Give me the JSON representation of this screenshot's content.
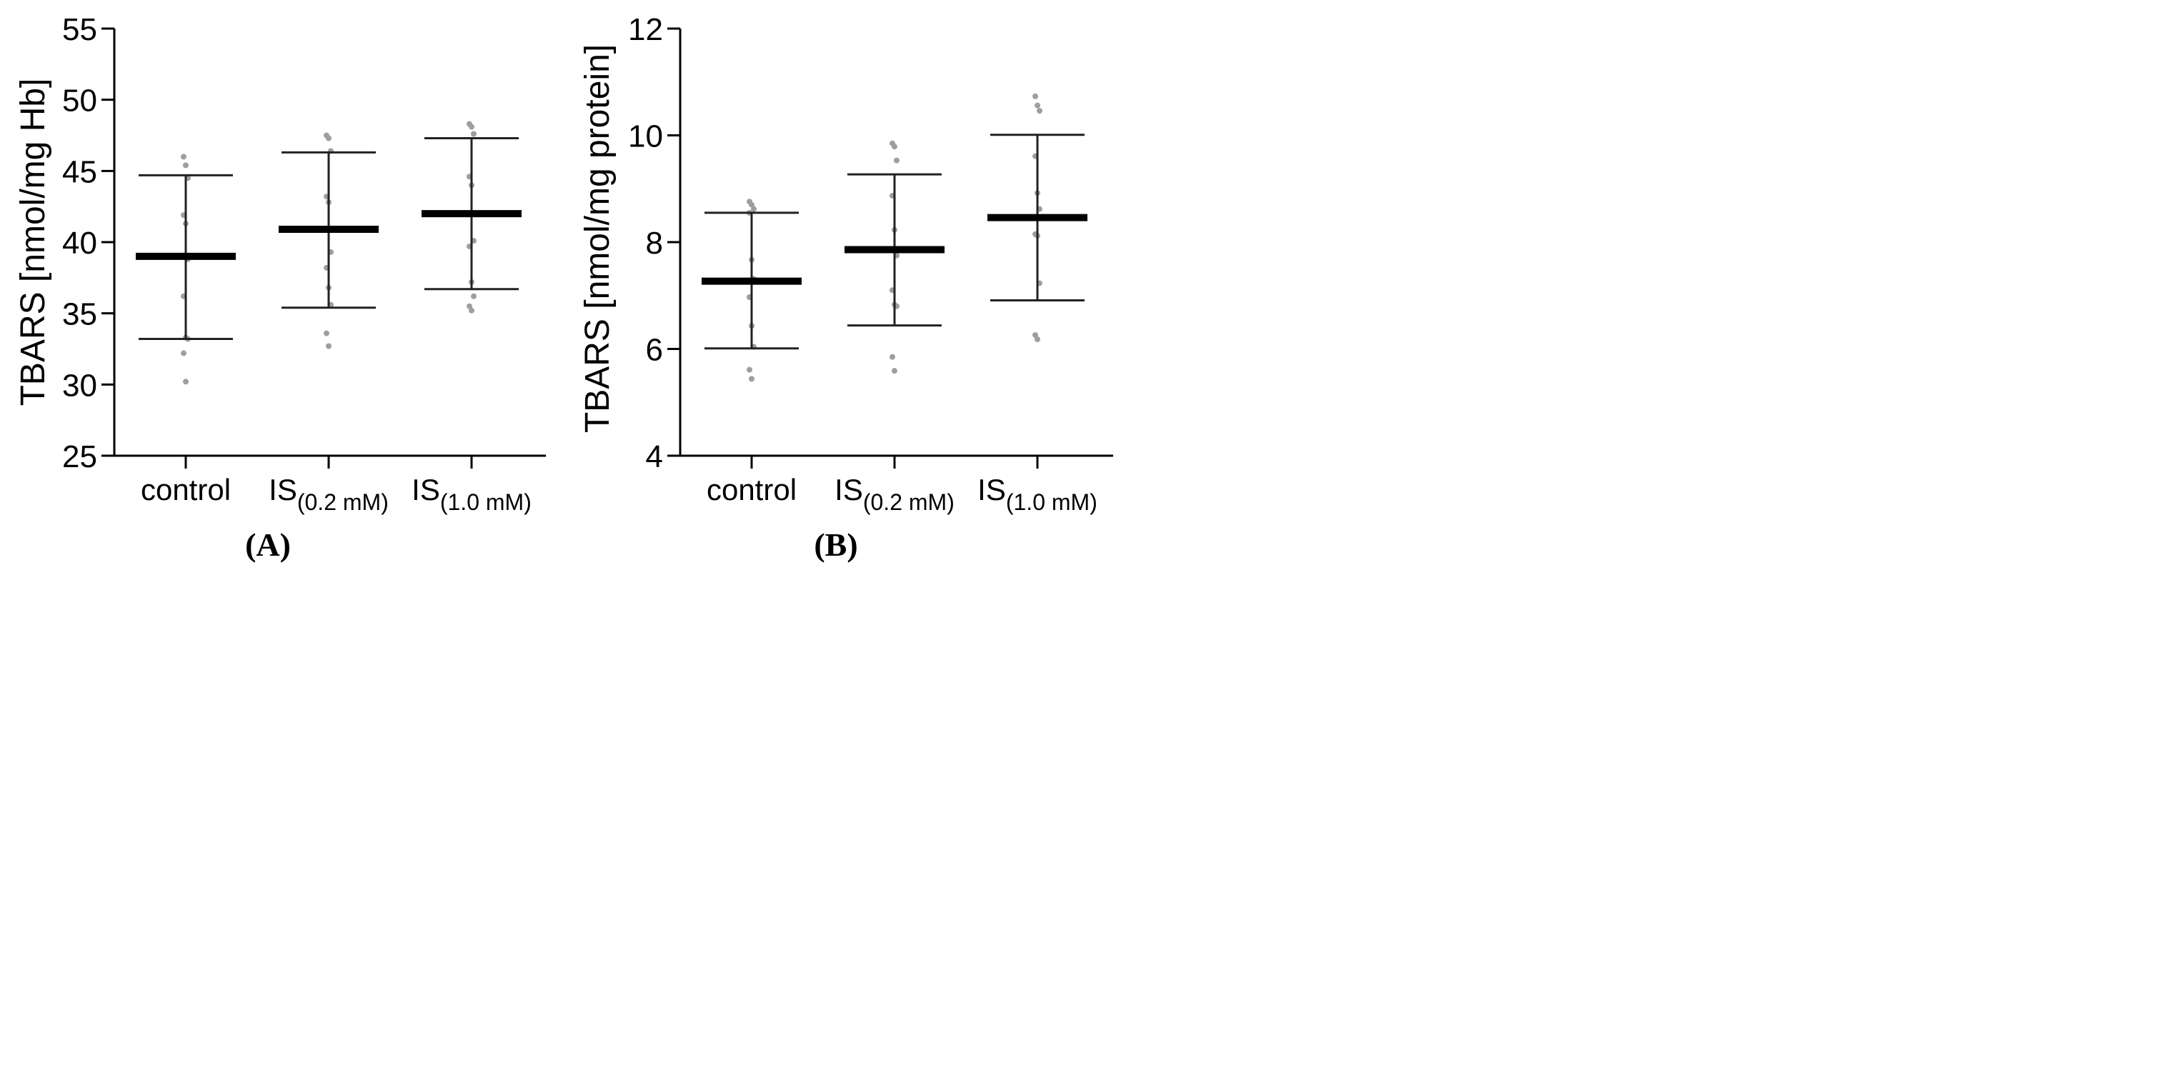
{
  "chart_data": [
    {
      "type": "scatter",
      "panel_label": "A",
      "panel_label_text": "(A)",
      "ylabel": "TBARS [nmol/mg Hb]",
      "ylim": [
        25,
        55
      ],
      "yticks": [
        25,
        30,
        35,
        40,
        45,
        50,
        55
      ],
      "ytick_labels": [
        "25",
        "30",
        "35",
        "40",
        "45",
        "50",
        "55"
      ],
      "categories": [
        {
          "main": "control",
          "sub": ""
        },
        {
          "main": "IS",
          "sub": "(0.2 mM)"
        },
        {
          "main": "IS",
          "sub": "(1.0 mM)"
        }
      ],
      "groups": [
        {
          "mean": 39.0,
          "sd_low": 33.2,
          "sd_high": 44.7,
          "points": [
            46.0,
            45.4,
            44.5,
            41.9,
            41.3,
            38.8,
            36.2,
            33.3,
            33.2,
            32.2,
            30.2
          ]
        },
        {
          "mean": 40.9,
          "sd_low": 35.4,
          "sd_high": 46.3,
          "points": [
            47.5,
            47.3,
            46.4,
            43.2,
            42.8,
            39.3,
            38.2,
            36.8,
            35.6,
            33.6,
            32.7
          ]
        },
        {
          "mean": 42.0,
          "sd_low": 36.7,
          "sd_high": 47.3,
          "points": [
            48.3,
            48.1,
            47.6,
            44.6,
            44.0,
            40.1,
            39.7,
            37.2,
            36.2,
            35.5,
            35.2
          ]
        }
      ]
    },
    {
      "type": "scatter",
      "panel_label": "B",
      "panel_label_text": "(B)",
      "ylabel": "TBARS [nmol/mg protein]",
      "ylim": [
        4,
        12
      ],
      "yticks": [
        4,
        6,
        8,
        10,
        12
      ],
      "ytick_labels": [
        "4",
        "6",
        "8",
        "10",
        "12"
      ],
      "categories": [
        {
          "main": "control",
          "sub": ""
        },
        {
          "main": "IS",
          "sub": "(0.2 mM)"
        },
        {
          "main": "IS",
          "sub": "(1.0 mM)"
        }
      ],
      "groups": [
        {
          "mean": 7.27,
          "sd_low": 6.01,
          "sd_high": 8.55,
          "points": [
            8.76,
            8.7,
            8.62,
            8.55,
            7.67,
            7.31,
            6.97,
            6.43,
            6.04,
            5.61,
            5.44
          ]
        },
        {
          "mean": 7.86,
          "sd_low": 6.44,
          "sd_high": 9.27,
          "points": [
            9.85,
            9.79,
            9.53,
            8.87,
            8.23,
            7.75,
            7.1,
            6.83,
            6.8,
            5.85,
            5.59
          ]
        },
        {
          "mean": 8.46,
          "sd_low": 6.91,
          "sd_high": 10.01,
          "points": [
            10.73,
            10.56,
            10.46,
            9.61,
            8.92,
            8.62,
            8.15,
            8.12,
            7.23,
            6.26,
            6.18
          ]
        }
      ]
    }
  ]
}
